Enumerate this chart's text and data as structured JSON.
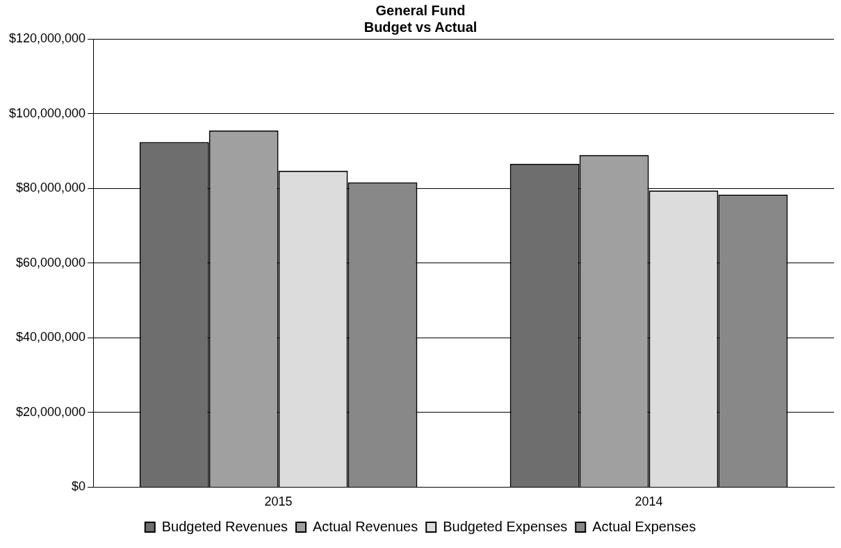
{
  "chart_data": {
    "type": "bar",
    "title": [
      "General Fund",
      "Budget vs Actual"
    ],
    "categories": [
      "2015",
      "2014"
    ],
    "series": [
      {
        "name": "Budgeted Revenues",
        "color": "#6e6e6e",
        "values": [
          92400000,
          86600000
        ]
      },
      {
        "name": "Actual Revenues",
        "color": "#a0a0a0",
        "values": [
          95500000,
          88900000
        ]
      },
      {
        "name": "Budgeted Expenses",
        "color": "#dcdcdc",
        "values": [
          84700000,
          79400000
        ]
      },
      {
        "name": "Actual Expenses",
        "color": "#888888",
        "values": [
          81600000,
          78300000
        ]
      }
    ],
    "ylim": [
      0,
      120000000
    ],
    "yticks": [
      {
        "value": 0,
        "label": "$0"
      },
      {
        "value": 20000000,
        "label": "$20,000,000"
      },
      {
        "value": 40000000,
        "label": "$40,000,000"
      },
      {
        "value": 60000000,
        "label": "$60,000,000"
      },
      {
        "value": 80000000,
        "label": "$80,000,000"
      },
      {
        "value": 100000000,
        "label": "$100,000,000"
      },
      {
        "value": 120000000,
        "label": "$120,000,000"
      }
    ],
    "grid": "y",
    "legend": "bottom"
  }
}
